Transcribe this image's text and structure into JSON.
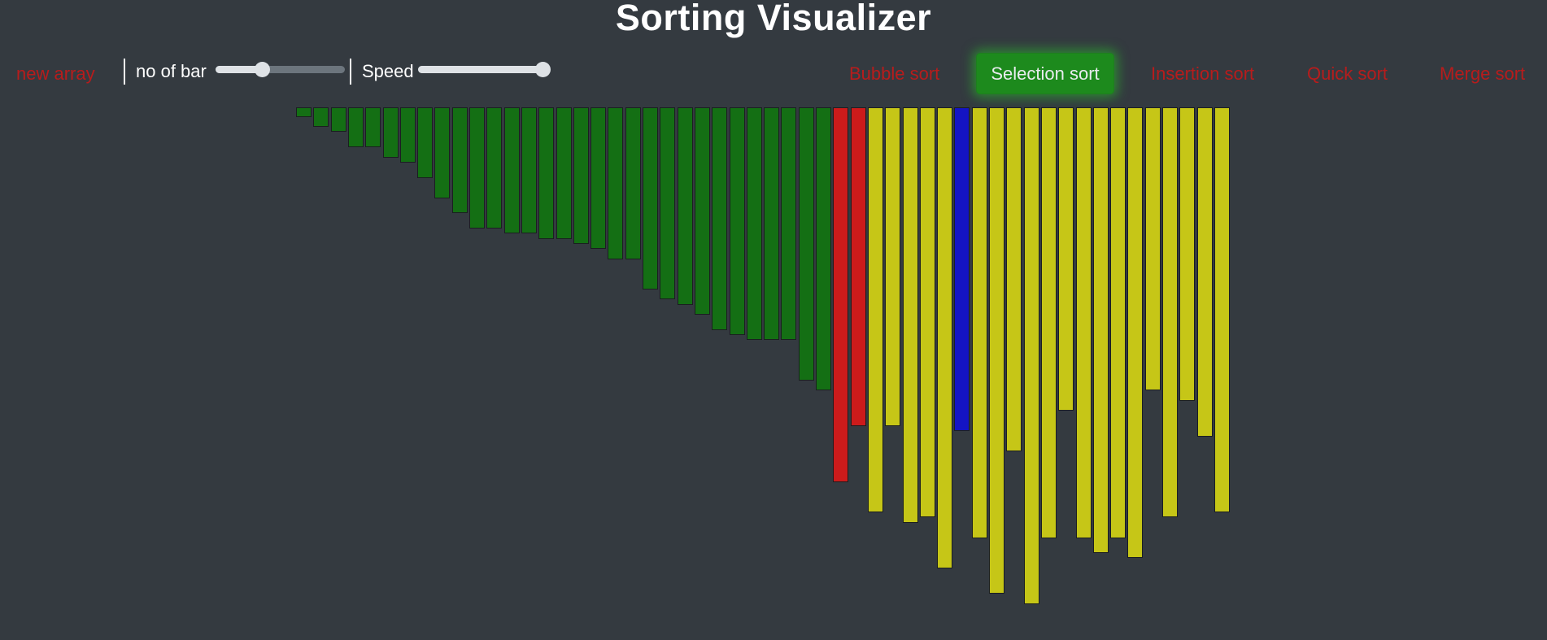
{
  "title": "Sorting Visualizer",
  "navbar": {
    "new_array_label": "new array",
    "bars_label": "no of bar",
    "speed_label": "Speed",
    "bars_slider_level": 0.36,
    "speed_slider_level": 0.95,
    "algorithms": {
      "bubble": "Bubble sort",
      "selection": "Selection sort",
      "insertion": "Insertion sort",
      "quick": "Quick sort",
      "merge": "Merge sort"
    },
    "active_algorithm": "Selection sort"
  },
  "colors": {
    "background": "#343a40",
    "link": "#b71c1c",
    "active_button": "#1d8a1d",
    "sorted": "#146f14",
    "comparing": "#cc1b1b",
    "unsorted": "#c6c617",
    "current_min": "#1414c4"
  },
  "bars": [
    {
      "value": 12,
      "state": "sorted"
    },
    {
      "value": 24,
      "state": "sorted"
    },
    {
      "value": 30,
      "state": "sorted"
    },
    {
      "value": 49,
      "state": "sorted"
    },
    {
      "value": 49,
      "state": "sorted"
    },
    {
      "value": 62,
      "state": "sorted"
    },
    {
      "value": 68,
      "state": "sorted"
    },
    {
      "value": 87,
      "state": "sorted"
    },
    {
      "value": 112,
      "state": "sorted"
    },
    {
      "value": 130,
      "state": "sorted"
    },
    {
      "value": 149,
      "state": "sorted"
    },
    {
      "value": 149,
      "state": "sorted"
    },
    {
      "value": 155,
      "state": "sorted"
    },
    {
      "value": 155,
      "state": "sorted"
    },
    {
      "value": 162,
      "state": "sorted"
    },
    {
      "value": 162,
      "state": "sorted"
    },
    {
      "value": 168,
      "state": "sorted"
    },
    {
      "value": 174,
      "state": "sorted"
    },
    {
      "value": 187,
      "state": "sorted"
    },
    {
      "value": 187,
      "state": "sorted"
    },
    {
      "value": 224,
      "state": "sorted"
    },
    {
      "value": 236,
      "state": "sorted"
    },
    {
      "value": 243,
      "state": "sorted"
    },
    {
      "value": 255,
      "state": "sorted"
    },
    {
      "value": 274,
      "state": "sorted"
    },
    {
      "value": 280,
      "state": "sorted"
    },
    {
      "value": 286,
      "state": "sorted"
    },
    {
      "value": 286,
      "state": "sorted"
    },
    {
      "value": 286,
      "state": "sorted"
    },
    {
      "value": 336,
      "state": "sorted"
    },
    {
      "value": 348,
      "state": "sorted"
    },
    {
      "value": 461,
      "state": "comparing"
    },
    {
      "value": 392,
      "state": "comparing"
    },
    {
      "value": 498,
      "state": "unsorted"
    },
    {
      "value": 392,
      "state": "unsorted"
    },
    {
      "value": 511,
      "state": "unsorted"
    },
    {
      "value": 504,
      "state": "unsorted"
    },
    {
      "value": 567,
      "state": "unsorted"
    },
    {
      "value": 398,
      "state": "current_min"
    },
    {
      "value": 530,
      "state": "unsorted"
    },
    {
      "value": 598,
      "state": "unsorted"
    },
    {
      "value": 423,
      "state": "unsorted"
    },
    {
      "value": 611,
      "state": "unsorted"
    },
    {
      "value": 530,
      "state": "unsorted"
    },
    {
      "value": 373,
      "state": "unsorted"
    },
    {
      "value": 530,
      "state": "unsorted"
    },
    {
      "value": 548,
      "state": "unsorted"
    },
    {
      "value": 530,
      "state": "unsorted"
    },
    {
      "value": 554,
      "state": "unsorted"
    },
    {
      "value": 348,
      "state": "unsorted"
    },
    {
      "value": 504,
      "state": "unsorted"
    },
    {
      "value": 361,
      "state": "unsorted"
    },
    {
      "value": 405,
      "state": "unsorted"
    },
    {
      "value": 498,
      "state": "unsorted"
    }
  ]
}
